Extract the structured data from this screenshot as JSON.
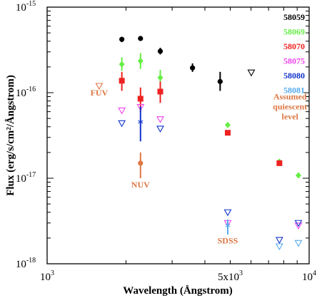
{
  "chart_data": {
    "type": "scatter",
    "title": "",
    "xlabel": "Wavelength (Ångstrom)",
    "ylabel": "Flux (erg/s/cm²/Ångstrom)",
    "xscale": "log",
    "yscale": "log",
    "xlim": [
      1000,
      10000
    ],
    "ylim": [
      1e-18,
      1e-15
    ],
    "grid": false,
    "legend_position": "top-right",
    "x_ticks": [
      {
        "value": 1000,
        "base": "10",
        "exp": "3"
      },
      {
        "value": 5000,
        "base": "5x10",
        "exp": "3"
      },
      {
        "value": 10000,
        "base": "10",
        "exp": "4"
      }
    ],
    "y_ticks": [
      {
        "value": 1e-15,
        "base": "10",
        "exp": "-15"
      },
      {
        "value": 1e-16,
        "base": "10",
        "exp": "-16"
      },
      {
        "value": 1e-17,
        "base": "10",
        "exp": "-17"
      },
      {
        "value": 1e-18,
        "base": "10",
        "exp": "-18"
      }
    ],
    "series": [
      {
        "name": "58059",
        "color": "#000000",
        "points": [
          {
            "x": 1928,
            "y": 4.2e-16,
            "marker": "circle",
            "err": [
              3.9e-16,
              4.5e-16
            ]
          },
          {
            "x": 2272,
            "y": 4.3e-16,
            "marker": "circle",
            "err": [
              4.05e-16,
              4.55e-16
            ]
          },
          {
            "x": 2703,
            "y": 3.05e-16,
            "marker": "circle",
            "err": [
              2.8e-16,
              3.35e-16
            ]
          },
          {
            "x": 3588,
            "y": 1.95e-16,
            "marker": "circle",
            "err": [
              1.75e-16,
              2.2e-16
            ]
          },
          {
            "x": 4574,
            "y": 1.35e-16,
            "marker": "circle",
            "err": [
              1.05e-16,
              1.75e-16
            ]
          },
          {
            "x": 6014,
            "y": 1.72e-16,
            "marker": "triangle-down-open"
          }
        ]
      },
      {
        "name": "58069",
        "color": "#66ee44",
        "points": [
          {
            "x": 1928,
            "y": 2.15e-16,
            "marker": "diamond",
            "err": [
              1.8e-16,
              2.6e-16
            ]
          },
          {
            "x": 2272,
            "y": 2.35e-16,
            "marker": "diamond",
            "err": [
              1.9e-16,
              2.9e-16
            ]
          },
          {
            "x": 2703,
            "y": 1.5e-16,
            "marker": "diamond",
            "err": [
              1.2e-16,
              1.85e-16
            ]
          },
          {
            "x": 4890,
            "y": 4.2e-17,
            "marker": "diamond"
          },
          {
            "x": 7700,
            "y": 1.56e-17,
            "marker": "diamond"
          },
          {
            "x": 9100,
            "y": 1.08e-17,
            "marker": "diamond"
          }
        ]
      },
      {
        "name": "58070",
        "color": "#ee2222",
        "points": [
          {
            "x": 1928,
            "y": 1.38e-16,
            "marker": "square",
            "err": [
              1.05e-16,
              1.75e-16
            ]
          },
          {
            "x": 2272,
            "y": 8.5e-17,
            "marker": "square",
            "err": [
              6e-17,
              1.15e-16
            ]
          },
          {
            "x": 2703,
            "y": 1.03e-16,
            "marker": "square",
            "err": [
              7.6e-17,
              1.35e-16
            ]
          },
          {
            "x": 4890,
            "y": 3.4e-17,
            "marker": "square"
          },
          {
            "x": 7700,
            "y": 1.5e-17,
            "marker": "square"
          }
        ]
      },
      {
        "name": "58075",
        "color": "#ee44ee",
        "points": [
          {
            "x": 1928,
            "y": 6.2e-17,
            "marker": "triangle-down-open"
          },
          {
            "x": 2272,
            "y": 6.8e-17,
            "marker": "triangle-down-open"
          },
          {
            "x": 2703,
            "y": 4.9e-17,
            "marker": "triangle-down-open"
          },
          {
            "x": 4890,
            "y": 3e-18,
            "marker": "triangle-down-open"
          },
          {
            "x": 9100,
            "y": 2.8e-18,
            "marker": "triangle-down-open"
          }
        ]
      },
      {
        "name": "58080",
        "color": "#1133cc",
        "points": [
          {
            "x": 1928,
            "y": 4.4e-17,
            "marker": "triangle-down-open"
          },
          {
            "x": 2272,
            "y": 4.55e-17,
            "marker": "asterisk",
            "err": [
              2.7e-17,
              6.9e-17
            ]
          },
          {
            "x": 2703,
            "y": 3.8e-17,
            "marker": "triangle-down-open"
          },
          {
            "x": 4890,
            "y": 4e-18,
            "marker": "triangle-down-open"
          },
          {
            "x": 7700,
            "y": 1.9e-18,
            "marker": "triangle-down-open"
          },
          {
            "x": 9100,
            "y": 3e-18,
            "marker": "triangle-down-open"
          }
        ]
      },
      {
        "name": "58081",
        "color": "#55aaee",
        "points": [
          {
            "x": 4890,
            "y": 2.8e-18,
            "marker": "asterisk",
            "err": [
              2.2e-18,
              3.3e-18
            ]
          },
          {
            "x": 7700,
            "y": 1.6e-18,
            "marker": "triangle-down-open"
          },
          {
            "x": 9100,
            "y": 1.75e-18,
            "marker": "triangle-down-open"
          }
        ]
      },
      {
        "name": "",
        "color": "#dd7744",
        "points": [
          {
            "x": 1580,
            "y": 1.2e-16,
            "marker": "triangle-down-open"
          },
          {
            "x": 2272,
            "y": 1.5e-17,
            "marker": "circle",
            "err": [
              1e-17,
              2e-17
            ]
          }
        ]
      }
    ],
    "annotations": [
      {
        "lines": [
          "FUV"
        ],
        "x": 1580,
        "y": 9.3e-17,
        "color": "#dd7744"
      },
      {
        "lines": [
          "NUV"
        ],
        "x": 2272,
        "y": 7.8e-18,
        "color": "#dd7744"
      },
      {
        "lines": [
          "SDSS"
        ],
        "x": 4890,
        "y": 1.72e-18,
        "color": "#dd7744"
      },
      {
        "lines": [
          "Assumed",
          "quiescent",
          "level"
        ],
        "x": 8450,
        "y": 8.3e-17,
        "color": "#dd7744"
      }
    ]
  }
}
